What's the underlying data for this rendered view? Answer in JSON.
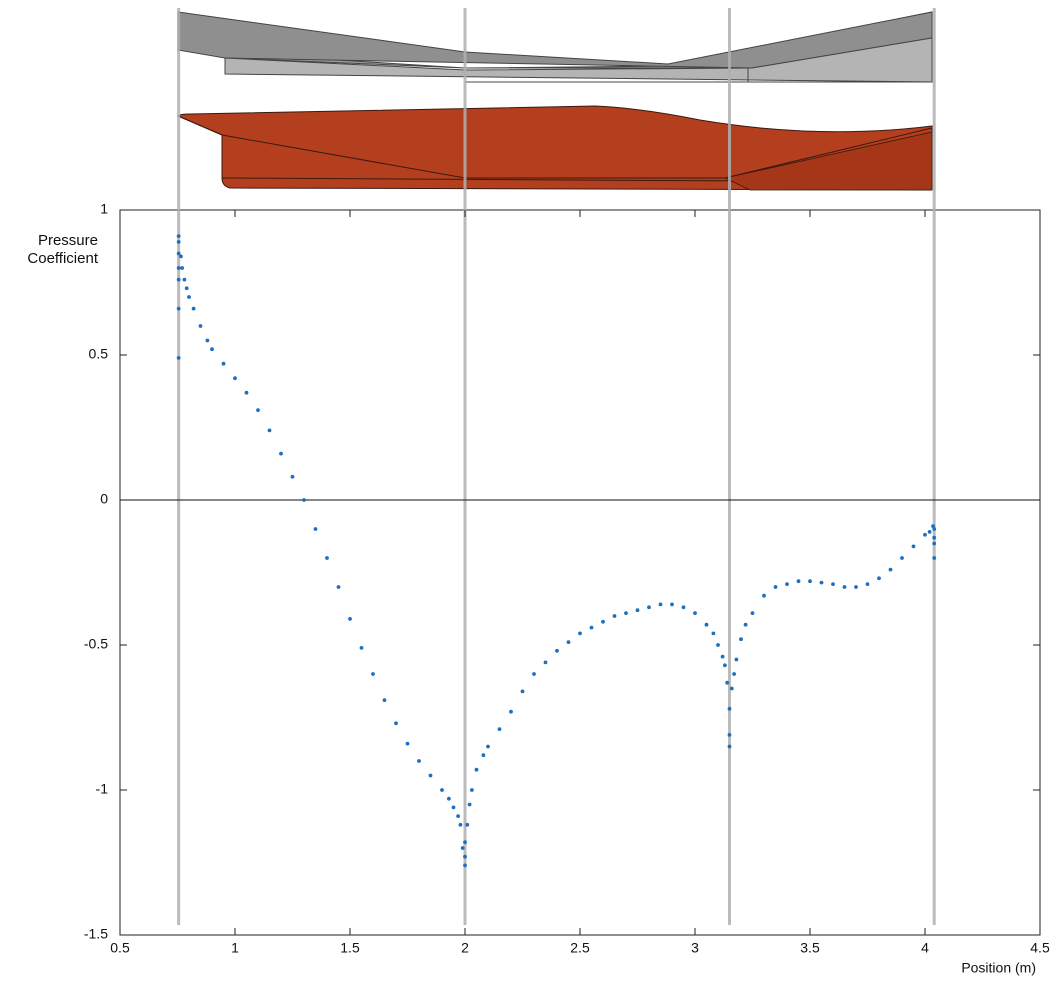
{
  "chart_data": {
    "type": "scatter",
    "xlabel": "Position (m)",
    "ylabel": "Pressure Coefficient",
    "xlim": [
      0.5,
      4.5
    ],
    "ylim": [
      -1.5,
      1
    ],
    "xticks": [
      0.5,
      1,
      1.5,
      2,
      2.5,
      3,
      3.5,
      4,
      4.5
    ],
    "yticks": [
      -1.5,
      -1,
      -0.5,
      0,
      0.5,
      1
    ],
    "vlines": [
      0.755,
      2.0,
      3.15,
      4.04
    ],
    "series": [
      {
        "color": "#1f6fbf",
        "x": [
          0.755,
          0.755,
          0.755,
          0.755,
          0.755,
          0.755,
          0.755,
          0.765,
          0.77,
          0.78,
          0.79,
          0.8,
          0.82,
          0.85,
          0.88,
          0.9,
          0.95,
          1.0,
          1.05,
          1.1,
          1.15,
          1.2,
          1.25,
          1.3,
          1.35,
          1.4,
          1.45,
          1.5,
          1.55,
          1.6,
          1.65,
          1.7,
          1.75,
          1.8,
          1.85,
          1.9,
          1.93,
          1.95,
          1.97,
          1.98,
          1.99,
          2.0,
          2.0,
          2.0,
          2.01,
          2.02,
          2.03,
          2.05,
          2.08,
          2.1,
          2.15,
          2.2,
          2.25,
          2.3,
          2.35,
          2.4,
          2.45,
          2.5,
          2.55,
          2.6,
          2.65,
          2.7,
          2.75,
          2.8,
          2.85,
          2.9,
          2.95,
          3.0,
          3.05,
          3.08,
          3.1,
          3.12,
          3.13,
          3.14,
          3.15,
          3.15,
          3.15,
          3.16,
          3.17,
          3.18,
          3.2,
          3.22,
          3.25,
          3.3,
          3.35,
          3.4,
          3.45,
          3.5,
          3.55,
          3.6,
          3.65,
          3.7,
          3.75,
          3.8,
          3.85,
          3.9,
          3.95,
          4.0,
          4.02,
          4.035,
          4.04,
          4.04,
          4.04,
          4.04
        ],
        "values": [
          0.91,
          0.89,
          0.85,
          0.8,
          0.76,
          0.66,
          0.49,
          0.84,
          0.8,
          0.76,
          0.73,
          0.7,
          0.66,
          0.6,
          0.55,
          0.52,
          0.47,
          0.42,
          0.37,
          0.31,
          0.24,
          0.16,
          0.08,
          0.0,
          -0.1,
          -0.2,
          -0.3,
          -0.41,
          -0.51,
          -0.6,
          -0.69,
          -0.77,
          -0.84,
          -0.9,
          -0.95,
          -1.0,
          -1.03,
          -1.06,
          -1.09,
          -1.12,
          -1.2,
          -1.26,
          -1.23,
          -1.18,
          -1.12,
          -1.05,
          -1.0,
          -0.93,
          -0.88,
          -0.85,
          -0.79,
          -0.73,
          -0.66,
          -0.6,
          -0.56,
          -0.52,
          -0.49,
          -0.46,
          -0.44,
          -0.42,
          -0.4,
          -0.39,
          -0.38,
          -0.37,
          -0.36,
          -0.36,
          -0.37,
          -0.39,
          -0.43,
          -0.46,
          -0.5,
          -0.54,
          -0.57,
          -0.63,
          -0.72,
          -0.81,
          -0.85,
          -0.65,
          -0.6,
          -0.55,
          -0.48,
          -0.43,
          -0.39,
          -0.33,
          -0.3,
          -0.29,
          -0.28,
          -0.28,
          -0.285,
          -0.29,
          -0.3,
          -0.3,
          -0.29,
          -0.27,
          -0.24,
          -0.2,
          -0.16,
          -0.12,
          -0.11,
          -0.09,
          -0.1,
          -0.13,
          -0.15,
          -0.2
        ]
      }
    ]
  }
}
